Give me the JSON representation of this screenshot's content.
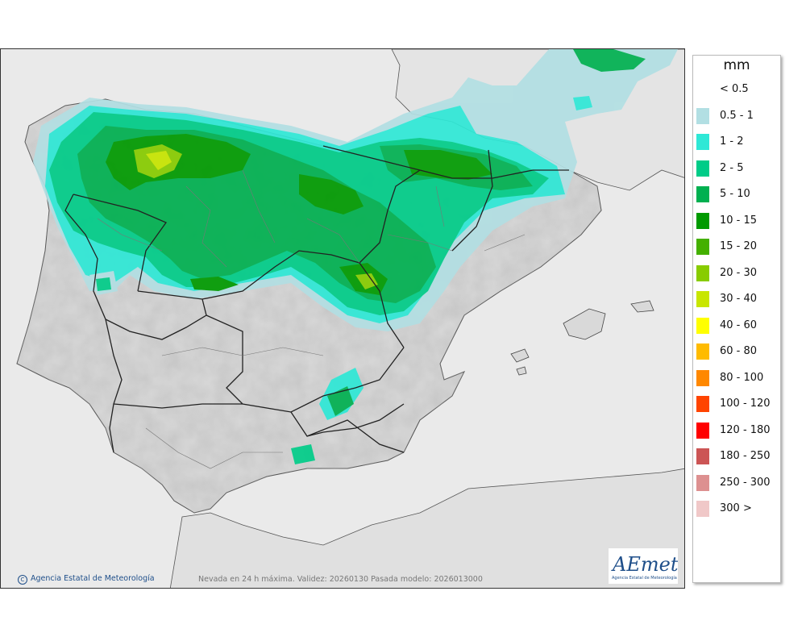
{
  "legend": {
    "unit": "mm",
    "items": [
      {
        "label": "< 0.5",
        "color": "#ffffff"
      },
      {
        "label": "0.5 - 1",
        "color": "#b2dfe3"
      },
      {
        "label": "1 - 2",
        "color": "#2ee8d6"
      },
      {
        "label": "2 - 5",
        "color": "#00cc88"
      },
      {
        "label": "5 - 10",
        "color": "#00b050"
      },
      {
        "label": "10 - 15",
        "color": "#009a00"
      },
      {
        "label": "15 - 20",
        "color": "#44b000"
      },
      {
        "label": "20 - 30",
        "color": "#88cc00"
      },
      {
        "label": "30 - 40",
        "color": "#c8e600"
      },
      {
        "label": "40 - 60",
        "color": "#ffff00"
      },
      {
        "label": "60 - 80",
        "color": "#ffbb00"
      },
      {
        "label": "80 - 100",
        "color": "#ff8800"
      },
      {
        "label": "100 - 120",
        "color": "#ff4400"
      },
      {
        "label": "120 - 180",
        "color": "#ff0000"
      },
      {
        "label": "180 - 250",
        "color": "#cc5555"
      },
      {
        "label": "250 - 300",
        "color": "#dd9090"
      },
      {
        "label": "300 >",
        "color": "#f0c8c8"
      }
    ]
  },
  "footer": {
    "credit_symbol": "C",
    "credit": "Agencia Estatal de Meteorología",
    "caption": "Nevada en 24 h máxima. Validez: 20260130 Pasada modelo: 2026013000"
  },
  "logo": {
    "wordmark": "AEmet",
    "subtitle": "Agencia Estatal de Meteorología"
  },
  "colors": {
    "sea": "#eaeaea",
    "land": "#d9d9d9",
    "border": "#222222"
  }
}
